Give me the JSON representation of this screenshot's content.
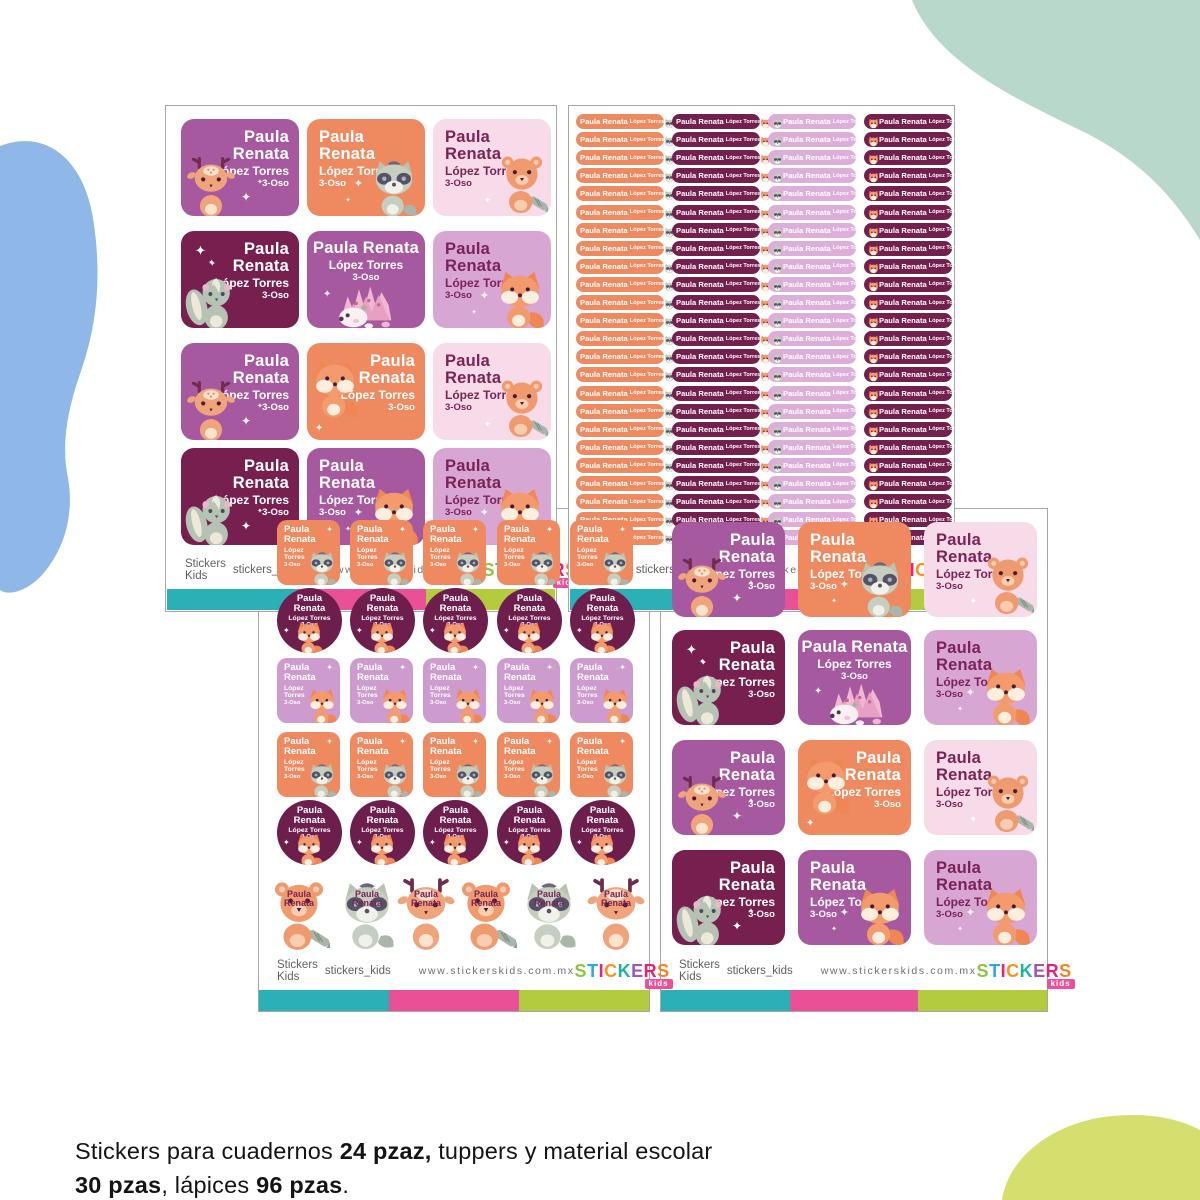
{
  "student": {
    "display_name": "Paula Renata",
    "name_line1": "Paula",
    "name_line2": "Renata",
    "last_names": "López Torres",
    "last_line1": "López",
    "last_line2": "Torres",
    "group": "3-Oso"
  },
  "caption": {
    "segments": [
      {
        "t": "Stickers para cuadernos ",
        "b": false
      },
      {
        "t": "24 pzaz,",
        "b": true
      },
      {
        "t": " tuppers y material escolar",
        "b": false
      },
      {
        "t": "BR",
        "br": true
      },
      {
        "t": "30 pzas",
        "b": true
      },
      {
        "t": ", lápices ",
        "b": false
      },
      {
        "t": "96 pzas",
        "b": true
      },
      {
        "t": ".",
        "b": false
      }
    ]
  },
  "sheet_footer": {
    "facebook_label": "Stickers Kids",
    "instagram_label": "stickers_kids",
    "website": "www.stickerskids.com.mx",
    "logo": {
      "word_letters": [
        {
          "ch": "S",
          "color": "#8dc63f"
        },
        {
          "ch": "T",
          "color": "#29abe2"
        },
        {
          "ch": "I",
          "color": "#ec1e79"
        },
        {
          "ch": "C",
          "color": "#f7941d"
        },
        {
          "ch": "K",
          "color": "#1db5a0"
        },
        {
          "ch": "E",
          "color": "#9b59b6"
        },
        {
          "ch": "R",
          "color": "#ec1e79"
        },
        {
          "ch": "S",
          "color": "#f58220"
        }
      ],
      "badge_text": "kids",
      "badge_color": "#ee4f9b"
    }
  },
  "colors": {
    "purple": "#a7599f",
    "dark_plum": "#77204f",
    "orange": "#ef8a60",
    "pale_pink": "#f8dbe9",
    "lilac": "#d7a6d2",
    "small_lilac": "#cd9bce",
    "circle_plum": "#6e1e4d",
    "pill_plum": "#74204e",
    "pill_lilac": "#dcaed9",
    "plum_text": "#7b2256",
    "white": "#ffffff"
  },
  "bar_colors": [
    "#29b1b7",
    "#ea5095",
    "#b3cc3f"
  ],
  "blob_colors": {
    "left": "#8fb7e8",
    "top_right": "#b7d8ca",
    "bottom_right": "#d5df6e"
  },
  "big_grid_cells": [
    {
      "bg": "purple",
      "tc": "white",
      "align": "right",
      "two": true,
      "animal": "deer",
      "apos": "bl"
    },
    {
      "bg": "orange",
      "tc": "white",
      "align": "left",
      "two": true,
      "animal": "raccoon",
      "apos": "br"
    },
    {
      "bg": "pale_pink",
      "tc": "plum_text",
      "align": "left",
      "two": false,
      "animal": "bear",
      "apos": "r"
    },
    {
      "bg": "dark_plum",
      "tc": "white",
      "align": "right",
      "two": true,
      "animal": "skunk",
      "apos": "bl",
      "spark": "tl"
    },
    {
      "bg": "purple",
      "tc": "white",
      "align": "center",
      "two": false,
      "animal": "hedgehog",
      "apos": "b"
    },
    {
      "bg": "lilac",
      "tc": "plum_text",
      "align": "left",
      "two": false,
      "animal": "fox",
      "apos": "br"
    },
    {
      "bg": "purple",
      "tc": "white",
      "align": "right",
      "two": true,
      "animal": "deer",
      "apos": "bl"
    },
    {
      "bg": "orange",
      "tc": "white",
      "align": "right",
      "two": true,
      "animal": "fox",
      "apos": "l"
    },
    {
      "bg": "pale_pink",
      "tc": "plum_text",
      "align": "left",
      "two": true,
      "animal": "bear",
      "apos": "r"
    },
    {
      "bg": "dark_plum",
      "tc": "white",
      "align": "right",
      "two": true,
      "animal": "skunk",
      "apos": "bl"
    },
    {
      "bg": "purple",
      "tc": "white",
      "align": "left",
      "two": true,
      "animal": "fox",
      "apos": "br"
    },
    {
      "bg": "lilac",
      "tc": "plum_text",
      "align": "left",
      "two": false,
      "animal": "fox",
      "apos": "br"
    }
  ],
  "pencil_sheet": {
    "rows": 24,
    "columns": [
      {
        "bg": "orange",
        "icon": "raccoon",
        "side": "right"
      },
      {
        "bg": "pill_plum",
        "icon": "fox",
        "side": "right"
      },
      {
        "bg": "pill_lilac",
        "icon": "raccoon",
        "side": "left"
      },
      {
        "bg": "pill_plum",
        "icon": "fox",
        "side": "left"
      }
    ]
  },
  "multi_sheet": {
    "per_row": 5,
    "small_rows": [
      {
        "type": "square",
        "bg": "orange",
        "animal": "raccoon"
      },
      {
        "type": "circle",
        "bg": "circle_plum",
        "animal": "fox"
      },
      {
        "type": "square",
        "bg": "small_lilac",
        "animal": "fox"
      },
      {
        "type": "square",
        "bg": "orange",
        "animal": "raccoon"
      },
      {
        "type": "circle",
        "bg": "circle_plum",
        "animal": "fox"
      }
    ],
    "diecut_animals": [
      "bear",
      "raccoon",
      "deer",
      "bear",
      "raccoon",
      "deer"
    ]
  }
}
